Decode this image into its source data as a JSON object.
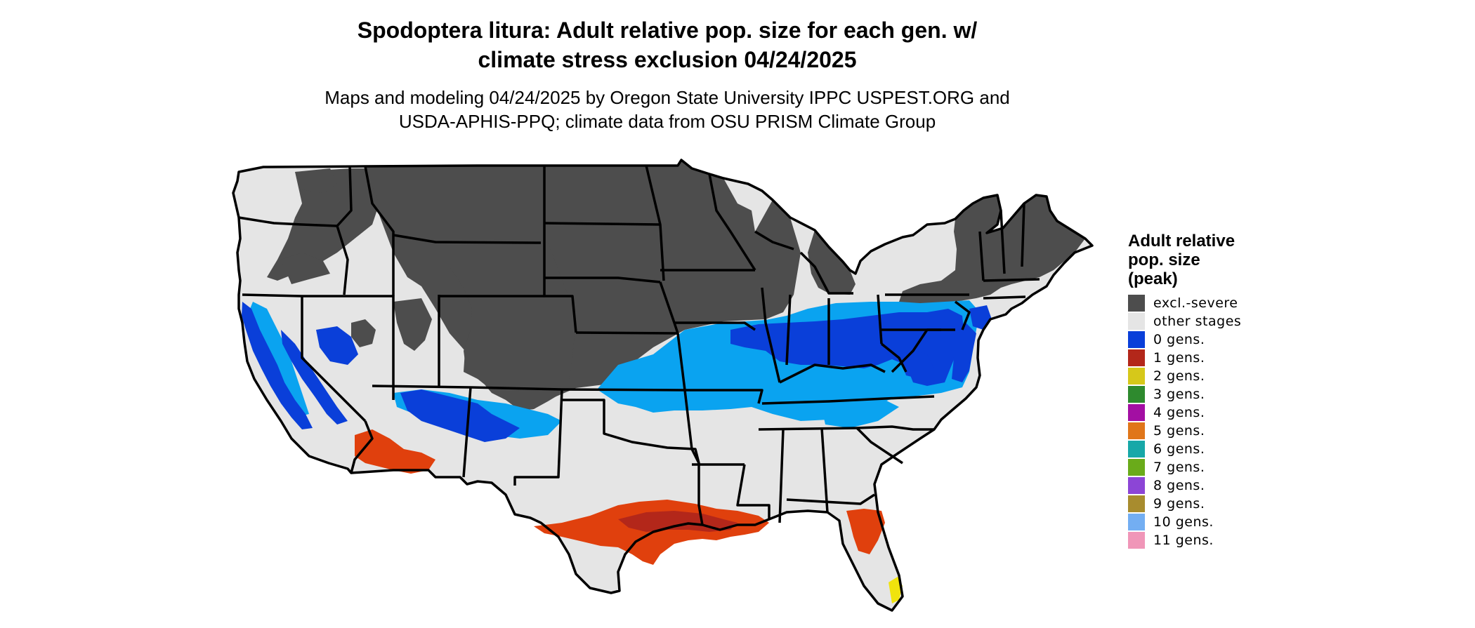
{
  "title": {
    "line1": "Spodoptera litura: Adult relative pop. size for each gen. w/",
    "line2": "climate stress exclusion 04/24/2025"
  },
  "subtitle": {
    "line1": "Maps and modeling 04/24/2025 by Oregon State University IPPC USPEST.ORG and",
    "line2": "USDA-APHIS-PPQ; climate data from OSU PRISM Climate Group"
  },
  "legend": {
    "title_lines": [
      "Adult relative",
      "pop. size",
      "(peak)"
    ],
    "items": [
      {
        "label": "excl.-severe",
        "color": "#4d4d4d"
      },
      {
        "label": "other stages",
        "color": "#e5e5e5"
      },
      {
        "label": "0 gens.",
        "color": "#0a3fd9"
      },
      {
        "label": "1 gens.",
        "color": "#b3271a"
      },
      {
        "label": "2 gens.",
        "color": "#d6c81a"
      },
      {
        "label": "3 gens.",
        "color": "#2e8a2e"
      },
      {
        "label": "4 gens.",
        "color": "#a30fa3"
      },
      {
        "label": "5 gens.",
        "color": "#e0761a"
      },
      {
        "label": "6 gens.",
        "color": "#17a8a8"
      },
      {
        "label": "7 gens.",
        "color": "#6aab1a"
      },
      {
        "label": "8 gens.",
        "color": "#8c45d6"
      },
      {
        "label": "9 gens.",
        "color": "#a88c2e"
      },
      {
        "label": "10 gens.",
        "color": "#73aef2"
      },
      {
        "label": "11 gens.",
        "color": "#f096b8"
      }
    ]
  },
  "map_colors": {
    "background_land": "#e5e5e5",
    "excluded": "#4d4d4d",
    "zero_gens_dark": "#0a3fd9",
    "zero_gens_light": "#0aa3f0",
    "one_gens": "#e0400d",
    "one_gens_dark": "#b3271a",
    "two_gens": "#f0e30d",
    "state_border": "#000000"
  }
}
